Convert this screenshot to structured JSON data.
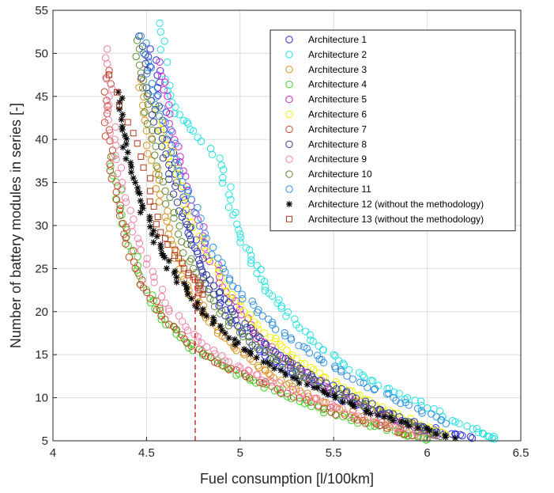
{
  "chart_data": {
    "type": "scatter",
    "xlabel": "Fuel consumption [l/100km]",
    "ylabel": "Number of battery modules in series [-]",
    "xlim": [
      4,
      6.5
    ],
    "ylim": [
      5,
      55
    ],
    "xticks": [
      "4",
      "4.5",
      "5",
      "5.5",
      "6",
      "6.5"
    ],
    "yticks": [
      "5",
      "10",
      "15",
      "20",
      "25",
      "30",
      "35",
      "40",
      "45",
      "50",
      "55"
    ],
    "grid": true,
    "legend_position": "top-right",
    "reference_line": {
      "x": 4.76,
      "y_from": 5,
      "y_to": 24,
      "color": "#d62728",
      "style": "dashed"
    },
    "series": [
      {
        "name": "Architecture 1",
        "color": "#2b2bd6",
        "marker": "circle",
        "points": [
          [
            4.52,
            50.5
          ],
          [
            4.56,
            46
          ],
          [
            4.61,
            40
          ],
          [
            4.66,
            35
          ],
          [
            4.71,
            30.5
          ],
          [
            4.78,
            26
          ],
          [
            4.86,
            22
          ],
          [
            4.95,
            19
          ],
          [
            5.05,
            16.5
          ],
          [
            5.16,
            14.5
          ],
          [
            5.28,
            13
          ],
          [
            5.4,
            11.5
          ],
          [
            5.53,
            10
          ],
          [
            5.67,
            8.8
          ],
          [
            5.82,
            7.5
          ],
          [
            5.98,
            6.5
          ],
          [
            6.13,
            5.8
          ],
          [
            6.24,
            5.3
          ]
        ]
      },
      {
        "name": "Architecture 2",
        "color": "#22e0e0",
        "marker": "circle",
        "points": [
          [
            4.57,
            53.5
          ],
          [
            4.6,
            47
          ],
          [
            4.65,
            43
          ],
          [
            4.75,
            41
          ],
          [
            4.9,
            37
          ],
          [
            4.95,
            33
          ],
          [
            5.0,
            29
          ],
          [
            5.06,
            26
          ],
          [
            5.13,
            23.5
          ],
          [
            5.2,
            21
          ],
          [
            5.3,
            18.5
          ],
          [
            5.42,
            16
          ],
          [
            5.55,
            14
          ],
          [
            5.7,
            12
          ],
          [
            5.85,
            10.5
          ],
          [
            6.0,
            8.8
          ],
          [
            6.15,
            7.2
          ],
          [
            6.3,
            5.8
          ],
          [
            6.36,
            5.2
          ]
        ]
      },
      {
        "name": "Architecture 3",
        "color": "#d8901c",
        "marker": "circle",
        "points": [
          [
            4.47,
            47
          ],
          [
            4.5,
            41
          ],
          [
            4.55,
            36
          ],
          [
            4.6,
            31
          ],
          [
            4.66,
            27
          ],
          [
            4.72,
            23
          ],
          [
            4.8,
            20
          ],
          [
            4.88,
            17.5
          ],
          [
            4.98,
            15.5
          ],
          [
            5.1,
            13.5
          ],
          [
            5.22,
            12
          ],
          [
            5.36,
            10.5
          ],
          [
            5.5,
            9
          ],
          [
            5.65,
            7.8
          ],
          [
            5.8,
            6.6
          ],
          [
            5.95,
            5.5
          ]
        ]
      },
      {
        "name": "Architecture 4",
        "color": "#3bd11f",
        "marker": "circle",
        "points": [
          [
            4.32,
            38
          ],
          [
            4.36,
            32
          ],
          [
            4.42,
            27
          ],
          [
            4.5,
            22.5
          ],
          [
            4.58,
            19.5
          ],
          [
            4.68,
            17
          ],
          [
            4.8,
            15
          ],
          [
            4.93,
            13.5
          ],
          [
            5.07,
            12
          ],
          [
            5.22,
            10.5
          ],
          [
            5.38,
            9
          ],
          [
            5.55,
            7.8
          ],
          [
            5.72,
            6.7
          ],
          [
            5.9,
            5.6
          ],
          [
            6.0,
            5.2
          ]
        ]
      },
      {
        "name": "Architecture 5",
        "color": "#cc22cc",
        "marker": "circle",
        "points": [
          [
            4.57,
            49
          ],
          [
            4.62,
            44
          ],
          [
            4.68,
            38
          ],
          [
            4.74,
            33
          ],
          [
            4.81,
            28
          ],
          [
            4.89,
            24
          ],
          [
            4.98,
            20.5
          ],
          [
            5.08,
            17.5
          ],
          [
            5.2,
            15
          ],
          [
            5.33,
            13
          ],
          [
            5.47,
            11.2
          ],
          [
            5.62,
            9.6
          ],
          [
            5.78,
            8
          ],
          [
            5.93,
            6.6
          ],
          [
            6.05,
            5.6
          ]
        ]
      },
      {
        "name": "Architecture 6",
        "color": "#f2f200",
        "marker": "circle",
        "points": [
          [
            4.55,
            44
          ],
          [
            4.6,
            40
          ],
          [
            4.66,
            36
          ],
          [
            4.73,
            31
          ],
          [
            4.82,
            27
          ],
          [
            4.92,
            23
          ],
          [
            5.02,
            20
          ],
          [
            5.13,
            17.5
          ],
          [
            5.25,
            15.5
          ],
          [
            5.38,
            13.5
          ],
          [
            5.52,
            11.5
          ],
          [
            5.67,
            9.8
          ],
          [
            5.82,
            8.2
          ],
          [
            5.97,
            6.8
          ],
          [
            6.1,
            5.7
          ]
        ]
      },
      {
        "name": "Architecture 7",
        "color": "#c0462a",
        "marker": "circle",
        "points": [
          [
            4.3,
            48
          ],
          [
            4.29,
            43
          ],
          [
            4.31,
            38
          ],
          [
            4.34,
            33
          ],
          [
            4.38,
            29
          ],
          [
            4.44,
            25
          ],
          [
            4.52,
            21.5
          ],
          [
            4.62,
            18.5
          ],
          [
            4.74,
            16
          ],
          [
            4.88,
            14
          ],
          [
            5.03,
            12.5
          ],
          [
            5.2,
            11
          ],
          [
            5.38,
            9.5
          ],
          [
            5.56,
            8
          ],
          [
            5.75,
            6.8
          ],
          [
            5.92,
            5.6
          ]
        ]
      },
      {
        "name": "Architecture 8",
        "color": "#2a3c8e",
        "marker": "circle",
        "points": [
          [
            4.46,
            52
          ],
          [
            4.5,
            46
          ],
          [
            4.56,
            41
          ],
          [
            4.62,
            36
          ],
          [
            4.69,
            31
          ],
          [
            4.77,
            27
          ],
          [
            4.86,
            23
          ],
          [
            4.96,
            20
          ],
          [
            5.07,
            17.5
          ],
          [
            5.19,
            15.3
          ],
          [
            5.32,
            13.4
          ],
          [
            5.46,
            11.7
          ],
          [
            5.6,
            10.1
          ],
          [
            5.75,
            8.6
          ],
          [
            5.9,
            7.2
          ],
          [
            6.05,
            6
          ]
        ]
      },
      {
        "name": "Architecture 9",
        "color": "#f27fa5",
        "marker": "circle",
        "points": [
          [
            4.29,
            50.5
          ],
          [
            4.3,
            45
          ],
          [
            4.33,
            40
          ],
          [
            4.37,
            35
          ],
          [
            4.42,
            30
          ],
          [
            4.5,
            25.5
          ],
          [
            4.6,
            21
          ],
          [
            4.72,
            17.8
          ],
          [
            4.86,
            15.5
          ],
          [
            5.0,
            13.5
          ],
          [
            5.16,
            12
          ],
          [
            5.33,
            10.5
          ],
          [
            5.5,
            9
          ],
          [
            5.68,
            7.7
          ],
          [
            5.85,
            6.5
          ],
          [
            6.0,
            5.4
          ]
        ]
      },
      {
        "name": "Architecture 10",
        "color": "#5d8a2e",
        "marker": "circle",
        "points": [
          [
            4.45,
            51.5
          ],
          [
            4.48,
            46
          ],
          [
            4.53,
            40
          ],
          [
            4.6,
            34
          ],
          [
            4.67,
            29
          ],
          [
            4.75,
            25
          ],
          [
            4.84,
            21.5
          ],
          [
            4.94,
            18.8
          ],
          [
            5.05,
            16.5
          ],
          [
            5.18,
            14.5
          ],
          [
            5.32,
            12.7
          ],
          [
            5.47,
            11
          ],
          [
            5.62,
            9.4
          ],
          [
            5.78,
            7.9
          ],
          [
            5.93,
            6.6
          ],
          [
            6.07,
            5.5
          ]
        ]
      },
      {
        "name": "Architecture 11",
        "color": "#2f8fde",
        "marker": "circle",
        "points": [
          [
            4.47,
            52
          ],
          [
            4.53,
            46.5
          ],
          [
            4.6,
            42
          ],
          [
            4.67,
            37
          ],
          [
            4.74,
            33
          ],
          [
            4.82,
            28.5
          ],
          [
            4.91,
            25
          ],
          [
            5.01,
            22
          ],
          [
            5.12,
            19.5
          ],
          [
            5.24,
            17.2
          ],
          [
            5.37,
            15.2
          ],
          [
            5.51,
            13.4
          ],
          [
            5.66,
            11.7
          ],
          [
            5.82,
            10
          ],
          [
            5.97,
            8.5
          ],
          [
            6.1,
            7
          ]
        ]
      },
      {
        "name": "Architecture 12 (without the methodology)",
        "color": "#000000",
        "marker": "asterisk",
        "points": [
          [
            4.35,
            45.5
          ],
          [
            4.37,
            41.5
          ],
          [
            4.4,
            38.5
          ],
          [
            4.44,
            35
          ],
          [
            4.48,
            32
          ],
          [
            4.53,
            29
          ],
          [
            4.59,
            26.5
          ],
          [
            4.66,
            24
          ],
          [
            4.74,
            21.5
          ],
          [
            4.82,
            19.5
          ],
          [
            4.92,
            17.5
          ],
          [
            5.03,
            15.5
          ],
          [
            5.16,
            13.8
          ],
          [
            5.3,
            12.2
          ],
          [
            5.45,
            10.6
          ],
          [
            5.6,
            9.2
          ],
          [
            5.77,
            7.8
          ],
          [
            5.95,
            6.5
          ],
          [
            6.15,
            5.3
          ]
        ]
      },
      {
        "name": "Architecture 13 (without the methodology)",
        "color": "#b03a1e",
        "marker": "square",
        "points": [
          [
            4.3,
            47.5
          ],
          [
            4.4,
            42
          ],
          [
            4.47,
            38
          ],
          [
            4.52,
            34
          ],
          [
            4.56,
            31
          ],
          [
            4.6,
            28.5
          ],
          [
            4.65,
            26.5
          ],
          [
            4.7,
            25
          ],
          [
            4.75,
            24
          ],
          [
            4.78,
            23
          ],
          [
            4.8,
            22
          ]
        ]
      }
    ]
  }
}
